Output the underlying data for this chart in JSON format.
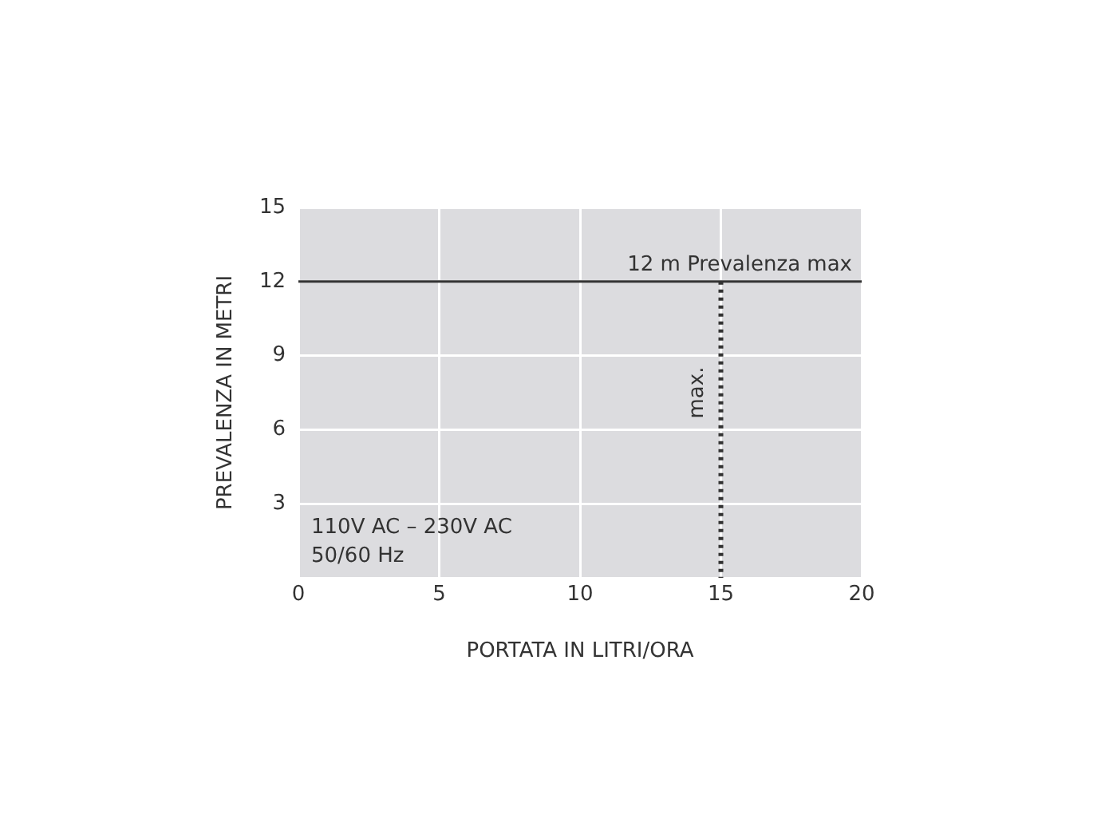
{
  "chart_data": {
    "type": "line",
    "xlabel": "PORTATA IN LITRI/ORA",
    "ylabel": "PREVALENZA IN METRI",
    "xlim": [
      0,
      20
    ],
    "xticks": [
      0,
      5,
      10,
      15,
      20
    ],
    "ylim": [
      0,
      15
    ],
    "yticks": [
      {
        "value": 0,
        "label": null
      },
      3,
      6,
      9,
      12,
      15
    ],
    "grid": true,
    "legend": false,
    "ref_lines": [
      {
        "axis": "y",
        "value": 12,
        "label": "12 m Prevalenza max",
        "color": "#333333",
        "line_style": "solid"
      },
      {
        "axis": "x",
        "value": 15,
        "label": "max.",
        "color": "#333333",
        "line_style": "dotted"
      }
    ],
    "annotations": [
      "110V AC – 230V AC",
      "50/60 Hz"
    ]
  }
}
